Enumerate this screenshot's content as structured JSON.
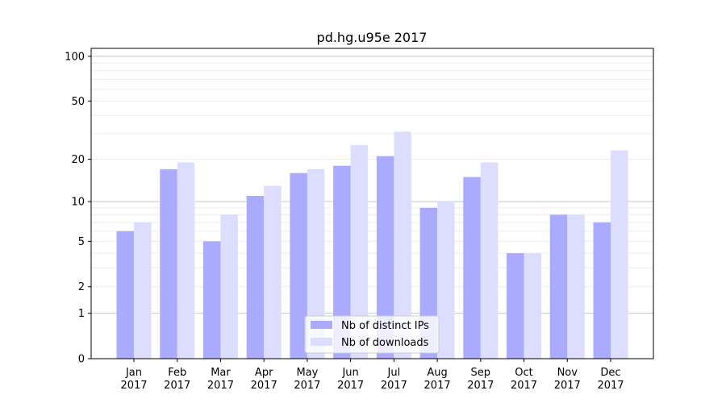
{
  "chart_data": {
    "type": "bar",
    "title": "pd.hg.u95e 2017",
    "xlabel": "",
    "ylabel": "",
    "yscale": "log(1+y)",
    "ylim": [
      0,
      113
    ],
    "yticks": [
      0,
      1,
      2,
      5,
      10,
      20,
      50,
      100
    ],
    "grid": true,
    "legend_position": "bottom-center",
    "categories": [
      "Jan\n2017",
      "Feb\n2017",
      "Mar\n2017",
      "Apr\n2017",
      "May\n2017",
      "Jun\n2017",
      "Jul\n2017",
      "Aug\n2017",
      "Sep\n2017",
      "Oct\n2017",
      "Nov\n2017",
      "Dec\n2017"
    ],
    "series": [
      {
        "name": "Nb of distinct IPs",
        "color": "#aaaaff",
        "values": [
          6,
          17,
          5,
          11,
          16,
          18,
          21,
          9,
          15,
          4,
          8,
          7
        ]
      },
      {
        "name": "Nb of downloads",
        "color": "#ddddff",
        "values": [
          7,
          19,
          8,
          13,
          17,
          25,
          31,
          10,
          19,
          4,
          8,
          23
        ]
      }
    ]
  }
}
